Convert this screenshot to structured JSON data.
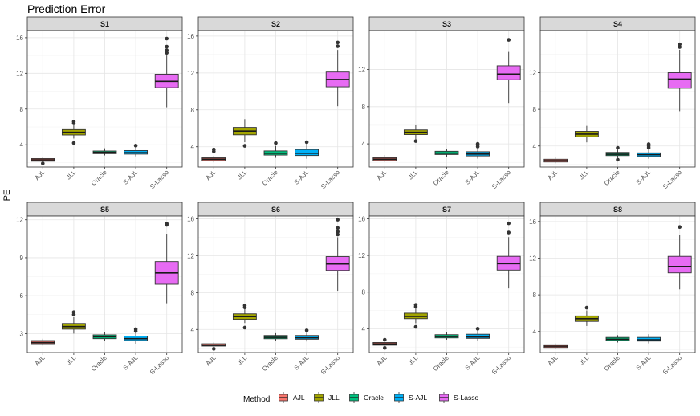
{
  "chart_data": {
    "type": "boxplot",
    "title": "Prediction Error",
    "ylabel": "PE",
    "legend": {
      "title": "Method",
      "placement": "bottom"
    },
    "methods": [
      "AJL",
      "JLL",
      "Oracle",
      "S-AJL",
      "S-Lasso"
    ],
    "colors": {
      "AJL": "#F8766D",
      "JLL": "#A3A500",
      "Oracle": "#00BF7D",
      "S-AJL": "#00B0F6",
      "S-Lasso": "#E76BF3"
    },
    "grid": true,
    "panels": [
      {
        "name": "S1",
        "ylim": [
          1.5,
          16.8
        ],
        "yticks": [
          4,
          8,
          12,
          16
        ],
        "boxes": [
          {
            "method": "AJL",
            "q1": 2.15,
            "median": 2.3,
            "q3": 2.45,
            "lo": 2.05,
            "hi": 2.6,
            "outliers": [
              1.9
            ]
          },
          {
            "method": "JLL",
            "q1": 5.1,
            "median": 5.4,
            "q3": 5.7,
            "lo": 4.7,
            "hi": 6.2,
            "outliers": [
              4.2,
              6.4,
              6.6
            ]
          },
          {
            "method": "Oracle",
            "q1": 3.0,
            "median": 3.15,
            "q3": 3.3,
            "lo": 2.8,
            "hi": 3.6,
            "outliers": []
          },
          {
            "method": "S-AJL",
            "q1": 2.95,
            "median": 3.1,
            "q3": 3.35,
            "lo": 2.7,
            "hi": 3.7,
            "outliers": [
              3.9
            ]
          },
          {
            "method": "S-Lasso",
            "q1": 10.4,
            "median": 11.1,
            "q3": 11.9,
            "lo": 8.2,
            "hi": 14.0,
            "outliers": [
              14.3,
              14.6,
              15.0,
              15.9
            ]
          }
        ]
      },
      {
        "name": "S2",
        "ylim": [
          1.8,
          16.6
        ],
        "yticks": [
          4,
          8,
          12,
          16
        ],
        "boxes": [
          {
            "method": "AJL",
            "q1": 2.5,
            "median": 2.65,
            "q3": 2.8,
            "lo": 2.3,
            "hi": 3.0,
            "outliers": [
              3.5,
              3.7
            ]
          },
          {
            "method": "JLL",
            "q1": 5.3,
            "median": 5.7,
            "q3": 6.1,
            "lo": 4.5,
            "hi": 7.0,
            "outliers": [
              4.1
            ]
          },
          {
            "method": "Oracle",
            "q1": 3.1,
            "median": 3.3,
            "q3": 3.55,
            "lo": 2.8,
            "hi": 4.1,
            "outliers": [
              4.4
            ]
          },
          {
            "method": "S-AJL",
            "q1": 3.05,
            "median": 3.3,
            "q3": 3.7,
            "lo": 2.7,
            "hi": 4.3,
            "outliers": [
              4.5
            ]
          },
          {
            "method": "S-Lasso",
            "q1": 10.5,
            "median": 11.3,
            "q3": 12.1,
            "lo": 8.4,
            "hi": 14.5,
            "outliers": [
              14.9,
              15.3
            ]
          }
        ]
      },
      {
        "name": "S3",
        "ylim": [
          1.5,
          16.2
        ],
        "yticks": [
          4,
          8,
          12
        ],
        "boxes": [
          {
            "method": "AJL",
            "q1": 2.2,
            "median": 2.35,
            "q3": 2.5,
            "lo": 2.05,
            "hi": 2.8,
            "outliers": []
          },
          {
            "method": "JLL",
            "q1": 5.0,
            "median": 5.25,
            "q3": 5.5,
            "lo": 4.5,
            "hi": 6.0,
            "outliers": [
              4.3
            ]
          },
          {
            "method": "Oracle",
            "q1": 2.85,
            "median": 3.0,
            "q3": 3.2,
            "lo": 2.6,
            "hi": 3.4,
            "outliers": []
          },
          {
            "method": "S-AJL",
            "q1": 2.7,
            "median": 2.9,
            "q3": 3.15,
            "lo": 2.4,
            "hi": 3.5,
            "outliers": [
              3.7,
              3.9,
              4.0
            ]
          },
          {
            "method": "S-Lasso",
            "q1": 10.9,
            "median": 11.5,
            "q3": 12.4,
            "lo": 8.4,
            "hi": 13.9,
            "outliers": [
              15.2
            ]
          }
        ]
      },
      {
        "name": "S4",
        "ylim": [
          1.7,
          16.6
        ],
        "yticks": [
          4,
          8,
          12
        ],
        "boxes": [
          {
            "method": "AJL",
            "q1": 2.25,
            "median": 2.4,
            "q3": 2.55,
            "lo": 2.1,
            "hi": 2.75,
            "outliers": []
          },
          {
            "method": "JLL",
            "q1": 5.0,
            "median": 5.3,
            "q3": 5.6,
            "lo": 4.4,
            "hi": 6.2,
            "outliers": []
          },
          {
            "method": "Oracle",
            "q1": 2.95,
            "median": 3.1,
            "q3": 3.3,
            "lo": 2.7,
            "hi": 3.6,
            "outliers": [
              2.5,
              3.8
            ]
          },
          {
            "method": "S-AJL",
            "q1": 2.85,
            "median": 3.05,
            "q3": 3.25,
            "lo": 2.6,
            "hi": 3.6,
            "outliers": [
              3.8,
              4.0,
              4.2
            ]
          },
          {
            "method": "S-Lasso",
            "q1": 10.3,
            "median": 11.3,
            "q3": 12.0,
            "lo": 7.8,
            "hi": 14.5,
            "outliers": [
              14.8,
              15.1
            ]
          }
        ]
      },
      {
        "name": "S5",
        "ylim": [
          1.5,
          12.3
        ],
        "yticks": [
          3,
          6,
          9,
          12
        ],
        "boxes": [
          {
            "method": "AJL",
            "q1": 2.2,
            "median": 2.3,
            "q3": 2.45,
            "lo": 2.05,
            "hi": 2.6,
            "outliers": []
          },
          {
            "method": "JLL",
            "q1": 3.35,
            "median": 3.55,
            "q3": 3.8,
            "lo": 3.0,
            "hi": 4.3,
            "outliers": [
              4.5,
              4.7
            ]
          },
          {
            "method": "Oracle",
            "q1": 2.6,
            "median": 2.75,
            "q3": 2.9,
            "lo": 2.4,
            "hi": 3.1,
            "outliers": []
          },
          {
            "method": "S-AJL",
            "q1": 2.45,
            "median": 2.6,
            "q3": 2.8,
            "lo": 2.2,
            "hi": 3.1,
            "outliers": [
              3.2,
              3.35
            ]
          },
          {
            "method": "S-Lasso",
            "q1": 6.9,
            "median": 7.8,
            "q3": 8.7,
            "lo": 5.4,
            "hi": 10.9,
            "outliers": [
              11.6,
              11.7
            ]
          }
        ]
      },
      {
        "name": "S6",
        "ylim": [
          1.5,
          16.3
        ],
        "yticks": [
          4,
          8,
          12,
          16
        ],
        "boxes": [
          {
            "method": "AJL",
            "q1": 2.2,
            "median": 2.3,
            "q3": 2.45,
            "lo": 2.05,
            "hi": 2.6,
            "outliers": [
              1.9
            ]
          },
          {
            "method": "JLL",
            "q1": 5.1,
            "median": 5.4,
            "q3": 5.7,
            "lo": 4.7,
            "hi": 6.2,
            "outliers": [
              4.2,
              6.4,
              6.6
            ]
          },
          {
            "method": "Oracle",
            "q1": 3.0,
            "median": 3.15,
            "q3": 3.35,
            "lo": 2.8,
            "hi": 3.6,
            "outliers": []
          },
          {
            "method": "S-AJL",
            "q1": 2.95,
            "median": 3.1,
            "q3": 3.35,
            "lo": 2.7,
            "hi": 3.7,
            "outliers": [
              3.9
            ]
          },
          {
            "method": "S-Lasso",
            "q1": 10.4,
            "median": 11.1,
            "q3": 11.9,
            "lo": 8.2,
            "hi": 14.0,
            "outliers": [
              14.3,
              14.6,
              15.0,
              15.9
            ]
          }
        ]
      },
      {
        "name": "S7",
        "ylim": [
          1.4,
          16.3
        ],
        "yticks": [
          4,
          8,
          12,
          16
        ],
        "boxes": [
          {
            "method": "AJL",
            "q1": 2.2,
            "median": 2.35,
            "q3": 2.5,
            "lo": 2.05,
            "hi": 2.7,
            "outliers": [
              1.9,
              2.8
            ]
          },
          {
            "method": "JLL",
            "q1": 5.1,
            "median": 5.35,
            "q3": 5.7,
            "lo": 4.6,
            "hi": 6.2,
            "outliers": [
              4.2,
              6.4,
              6.6
            ]
          },
          {
            "method": "Oracle",
            "q1": 3.0,
            "median": 3.15,
            "q3": 3.35,
            "lo": 2.8,
            "hi": 3.6,
            "outliers": []
          },
          {
            "method": "S-AJL",
            "q1": 2.95,
            "median": 3.1,
            "q3": 3.4,
            "lo": 2.7,
            "hi": 3.8,
            "outliers": [
              4.0
            ]
          },
          {
            "method": "S-Lasso",
            "q1": 10.4,
            "median": 11.1,
            "q3": 11.9,
            "lo": 8.4,
            "hi": 14.0,
            "outliers": [
              14.5,
              15.5
            ]
          }
        ]
      },
      {
        "name": "S8",
        "ylim": [
          1.7,
          16.6
        ],
        "yticks": [
          4,
          8,
          12,
          16
        ],
        "boxes": [
          {
            "method": "AJL",
            "q1": 2.25,
            "median": 2.4,
            "q3": 2.55,
            "lo": 2.1,
            "hi": 2.7,
            "outliers": []
          },
          {
            "method": "JLL",
            "q1": 5.1,
            "median": 5.4,
            "q3": 5.7,
            "lo": 4.6,
            "hi": 6.3,
            "outliers": [
              6.6
            ]
          },
          {
            "method": "Oracle",
            "q1": 3.0,
            "median": 3.15,
            "q3": 3.35,
            "lo": 2.8,
            "hi": 3.6,
            "outliers": []
          },
          {
            "method": "S-AJL",
            "q1": 2.95,
            "median": 3.1,
            "q3": 3.35,
            "lo": 2.7,
            "hi": 3.7,
            "outliers": []
          },
          {
            "method": "S-Lasso",
            "q1": 10.4,
            "median": 11.1,
            "q3": 12.2,
            "lo": 8.6,
            "hi": 14.5,
            "outliers": [
              15.4
            ]
          }
        ]
      }
    ]
  }
}
